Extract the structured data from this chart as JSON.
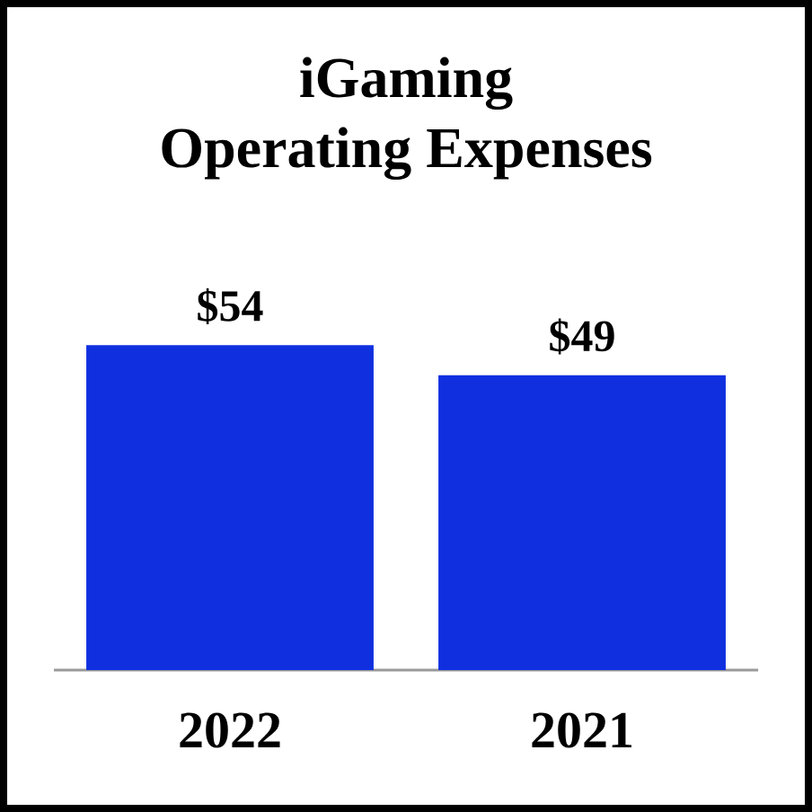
{
  "chart_data": {
    "type": "bar",
    "title": "iGaming",
    "subtitle": "Operating Expenses",
    "categories": [
      "2022",
      "2021"
    ],
    "values": [
      54,
      49
    ],
    "value_labels": [
      "$54",
      "$49"
    ],
    "color": "#1030e0"
  }
}
